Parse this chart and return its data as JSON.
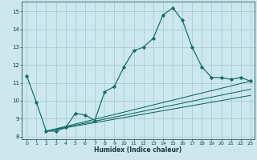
{
  "xlabel": "Humidex (Indice chaleur)",
  "bg_color": "#cce8ee",
  "grid_color": "#aacdd6",
  "line_color": "#1a6e6a",
  "xlim": [
    -0.5,
    23.4
  ],
  "ylim": [
    7.85,
    15.55
  ],
  "xticks": [
    0,
    1,
    2,
    3,
    4,
    5,
    6,
    7,
    8,
    9,
    10,
    11,
    12,
    13,
    14,
    15,
    16,
    17,
    18,
    19,
    20,
    21,
    22,
    23
  ],
  "yticks": [
    8,
    9,
    10,
    11,
    12,
    13,
    14,
    15
  ],
  "main_line_x": [
    0,
    1,
    2,
    3,
    4,
    5,
    6,
    7,
    8,
    9,
    10,
    11,
    12,
    13,
    14,
    15,
    16,
    17,
    18,
    19,
    20,
    21,
    22,
    23
  ],
  "main_line_y": [
    11.4,
    9.9,
    8.3,
    8.3,
    8.5,
    9.3,
    9.2,
    8.9,
    10.5,
    10.8,
    11.9,
    12.8,
    13.0,
    13.5,
    14.8,
    15.2,
    14.5,
    13.0,
    11.9,
    11.3,
    11.3,
    11.2,
    11.3,
    11.1
  ],
  "aux_line_starts": [
    [
      2,
      8.3
    ],
    [
      2,
      8.3
    ],
    [
      2,
      8.3
    ]
  ],
  "aux_line_ends": [
    [
      23,
      11.1
    ],
    [
      23,
      10.65
    ],
    [
      23,
      10.3
    ]
  ]
}
